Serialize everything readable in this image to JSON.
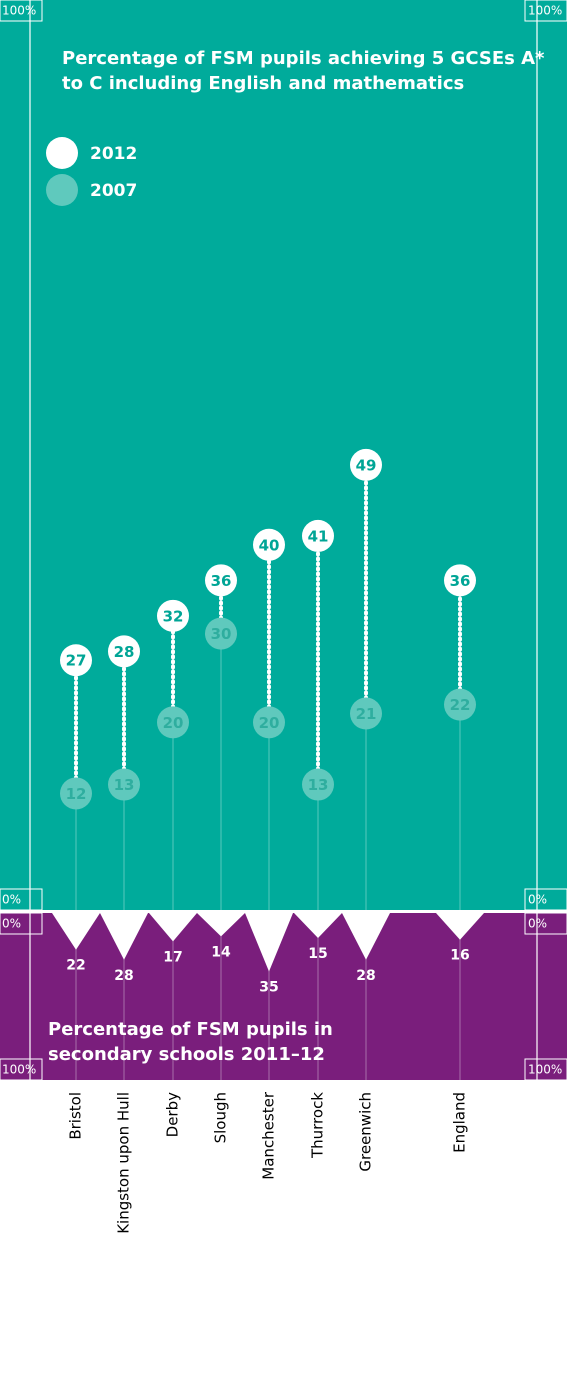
{
  "chart_data": [
    {
      "type": "dumbbell",
      "title": "Percentage of FSM pupils achieving 5 GCSEs A* to C including English and mathematics",
      "categories": [
        "Bristol",
        "Kingston upon Hull",
        "Derby",
        "Slough",
        "Manchester",
        "Thurrock",
        "Greenwich",
        "England"
      ],
      "series": [
        {
          "name": "2012",
          "color": "#ffffff",
          "values": [
            27,
            28,
            32,
            36,
            40,
            41,
            49,
            36
          ]
        },
        {
          "name": "2007",
          "color": "#5fc9bd",
          "values": [
            12,
            13,
            20,
            30,
            20,
            13,
            21,
            22
          ]
        }
      ],
      "background": "#00ab9b",
      "ylim": [
        0,
        100
      ],
      "yticks": [
        {
          "value": 100,
          "label": "100%"
        },
        {
          "value": 0,
          "label": "0%"
        }
      ]
    },
    {
      "type": "triangle",
      "title": "Percentage of FSM pupils in secondary schools 2011–12",
      "values": [
        22,
        28,
        17,
        14,
        35,
        15,
        28,
        16
      ],
      "color": "#ffffff",
      "background": "#7a1e7c",
      "ylim": [
        0,
        100
      ],
      "yticks": [
        {
          "value": 0,
          "label": "0%"
        },
        {
          "value": 100,
          "label": "100%"
        }
      ]
    }
  ]
}
